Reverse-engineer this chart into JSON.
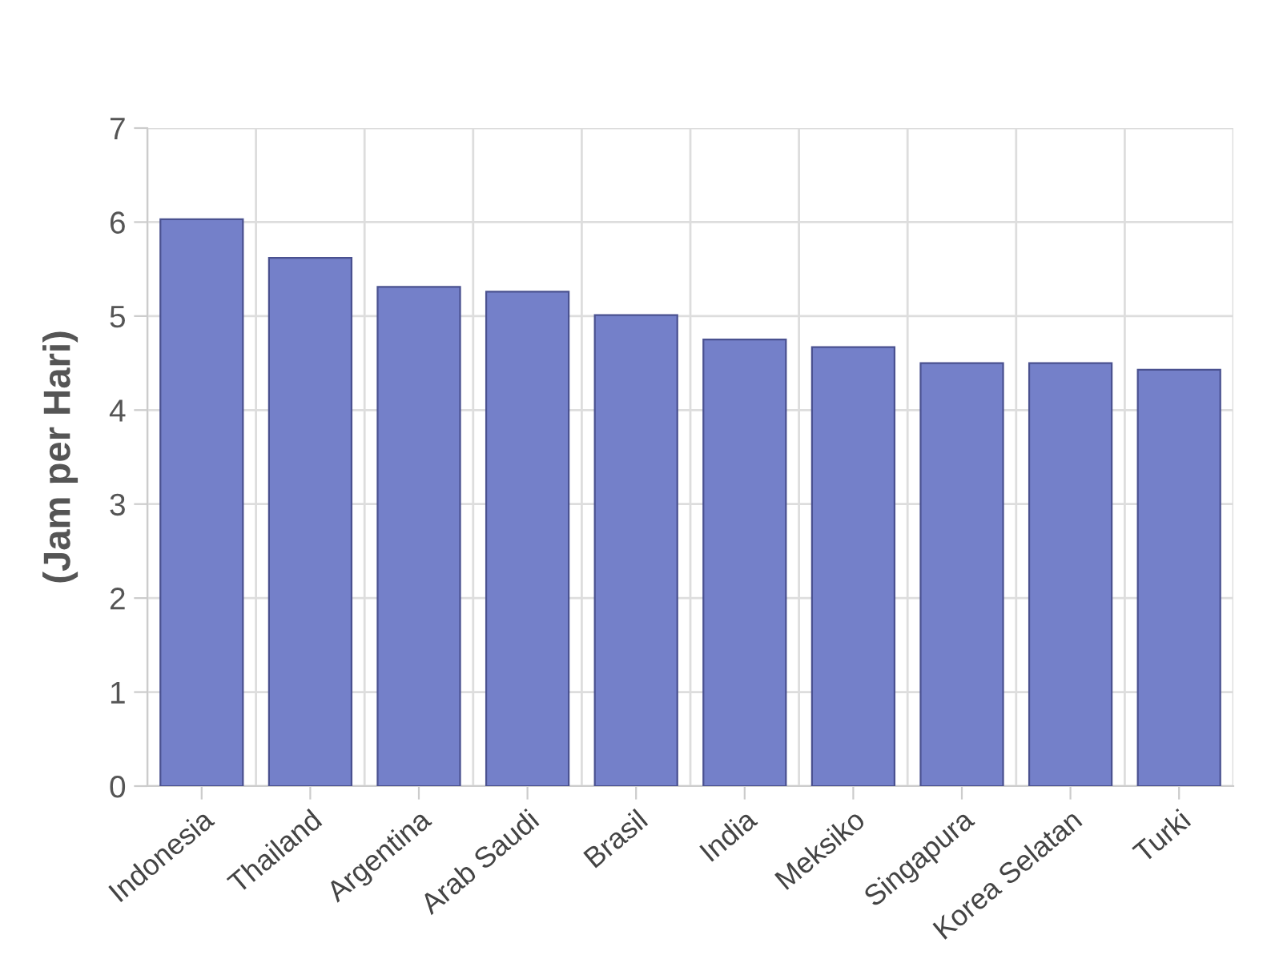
{
  "chart_data": {
    "type": "bar",
    "ylabel": "(Jam per Hari)",
    "categories": [
      "Indonesia",
      "Thailand",
      "Argentina",
      "Arab Saudi",
      "Brasil",
      "India",
      "Meksiko",
      "Singapura",
      "Korea Selatan",
      "Turki"
    ],
    "values": [
      6.03,
      5.62,
      5.31,
      5.26,
      5.01,
      4.75,
      4.67,
      4.5,
      4.5,
      4.43
    ],
    "color": "#7480c9",
    "ylim": [
      0,
      7
    ],
    "yticks": [
      0,
      1,
      2,
      3,
      4,
      5,
      6,
      7
    ],
    "grid": true
  }
}
